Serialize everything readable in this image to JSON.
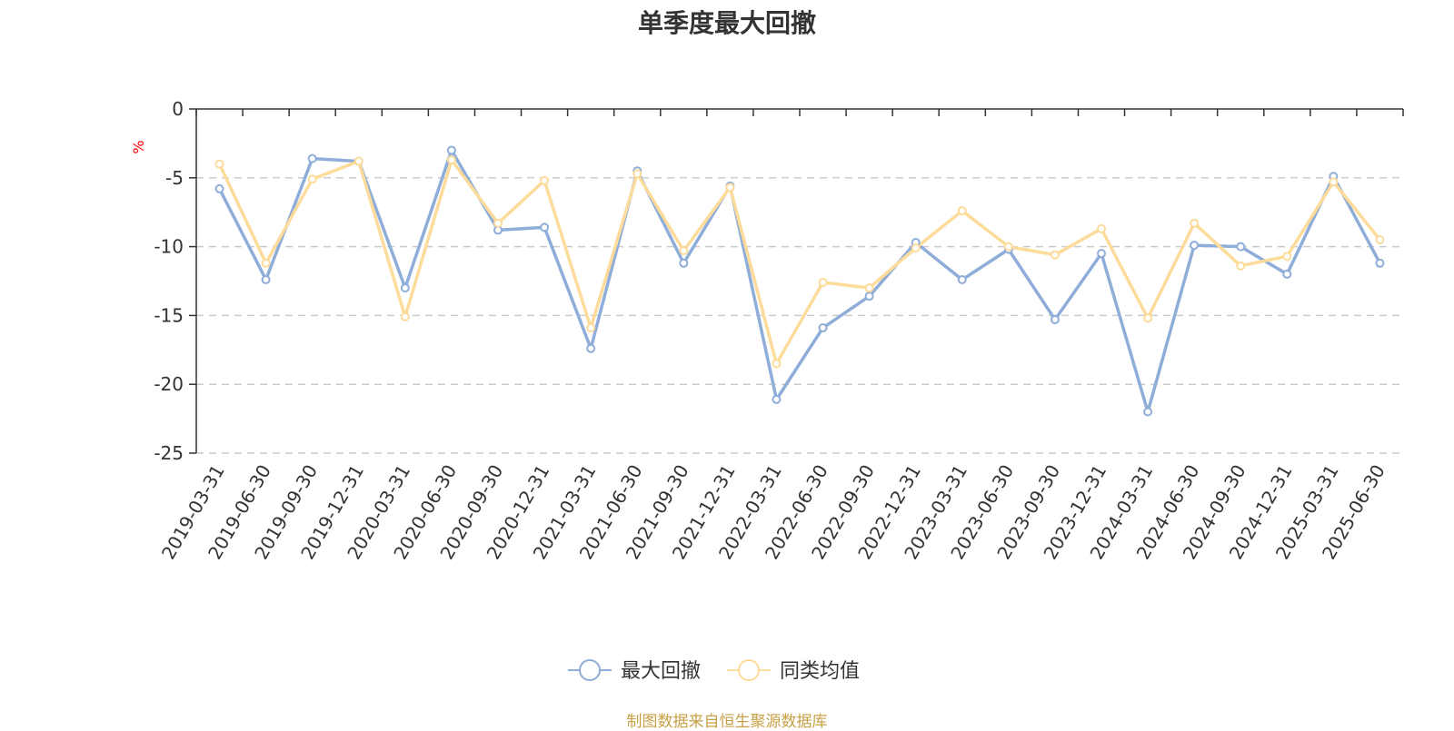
{
  "title": "单季度最大回撤",
  "source": "制图数据来自恒生聚源数据库",
  "colors": {
    "series1": "#8eadd9",
    "series2": "#fddb9a",
    "grid": "#cccccc",
    "axis": "#333333",
    "unit": "#ff0000",
    "source": "#c8a046"
  },
  "chart_data": {
    "type": "line",
    "ylabel": "%",
    "ylim": [
      -25,
      0
    ],
    "yticks": [
      0,
      -5,
      -10,
      -15,
      -20,
      -25
    ],
    "grid": "horizontal-dashed",
    "legend": "bottom-center",
    "categories": [
      "2019-03-31",
      "2019-06-30",
      "2019-09-30",
      "2019-12-31",
      "2020-03-31",
      "2020-06-30",
      "2020-09-30",
      "2020-12-31",
      "2021-03-31",
      "2021-06-30",
      "2021-09-30",
      "2021-12-31",
      "2022-03-31",
      "2022-06-30",
      "2022-09-30",
      "2022-12-31",
      "2023-03-31",
      "2023-06-30",
      "2023-09-30",
      "2023-12-31",
      "2024-03-31",
      "2024-06-30",
      "2024-09-30",
      "2024-12-31",
      "2025-03-31",
      "2025-06-30"
    ],
    "series": [
      {
        "name": "最大回撤",
        "values": [
          -5.8,
          -12.4,
          -3.6,
          -3.8,
          -13.0,
          -3.0,
          -8.8,
          -8.6,
          -17.4,
          -4.5,
          -11.2,
          -5.6,
          -21.1,
          -15.9,
          -13.6,
          -9.7,
          -12.4,
          -10.2,
          -15.3,
          -10.5,
          -22.0,
          -9.9,
          -10.0,
          -12.0,
          -4.9,
          -11.2
        ]
      },
      {
        "name": "同类均值",
        "values": [
          -4.0,
          -11.2,
          -5.1,
          -3.8,
          -15.1,
          -3.7,
          -8.3,
          -5.2,
          -15.9,
          -4.7,
          -10.3,
          -5.7,
          -18.5,
          -12.6,
          -13.0,
          -10.1,
          -7.4,
          -10.0,
          -10.6,
          -8.7,
          -15.2,
          -8.3,
          -11.4,
          -10.7,
          -5.3,
          -9.5
        ]
      }
    ]
  }
}
